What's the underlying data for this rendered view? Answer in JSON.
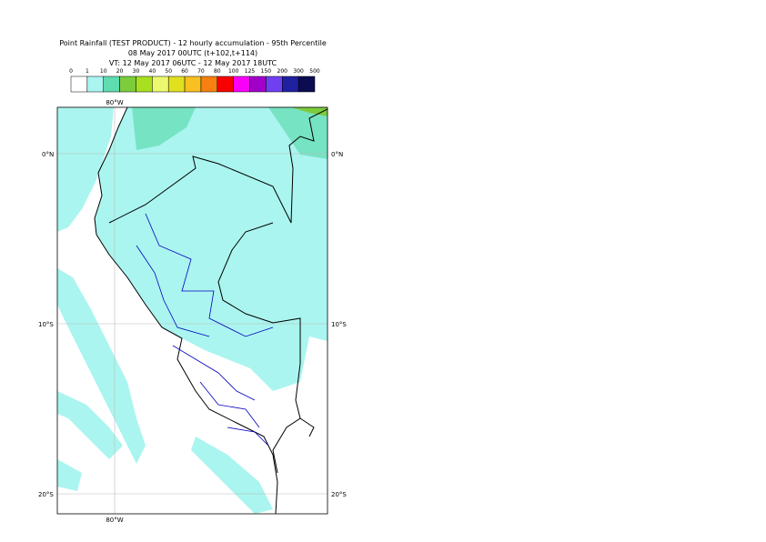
{
  "header": {
    "title": "Point Rainfall (TEST PRODUCT) - 12 hourly accumulation - 95th Percentile",
    "base_time": "08 May 2017 00UTC (t+102,t+114)",
    "valid_time": "VT: 12 May 2017 06UTC - 12 May 2017 18UTC"
  },
  "legend": {
    "labels": [
      "0",
      "1",
      "10",
      "20",
      "30",
      "40",
      "50",
      "60",
      "70",
      "80",
      "100",
      "125",
      "150",
      "200",
      "300",
      "500"
    ],
    "colors": [
      "#ffffff",
      "#aaf5ef",
      "#5fdcb0",
      "#7ccc3c",
      "#a8e020",
      "#ecf870",
      "#e0e020",
      "#f8c020",
      "#f88010",
      "#f80000",
      "#f800f8",
      "#a000c8",
      "#7040f0",
      "#2020a0",
      "#0c0c50"
    ]
  },
  "map": {
    "lat_labels": [
      "0°N",
      "10°S",
      "20°S"
    ],
    "lon_labels": [
      "80°W"
    ]
  }
}
